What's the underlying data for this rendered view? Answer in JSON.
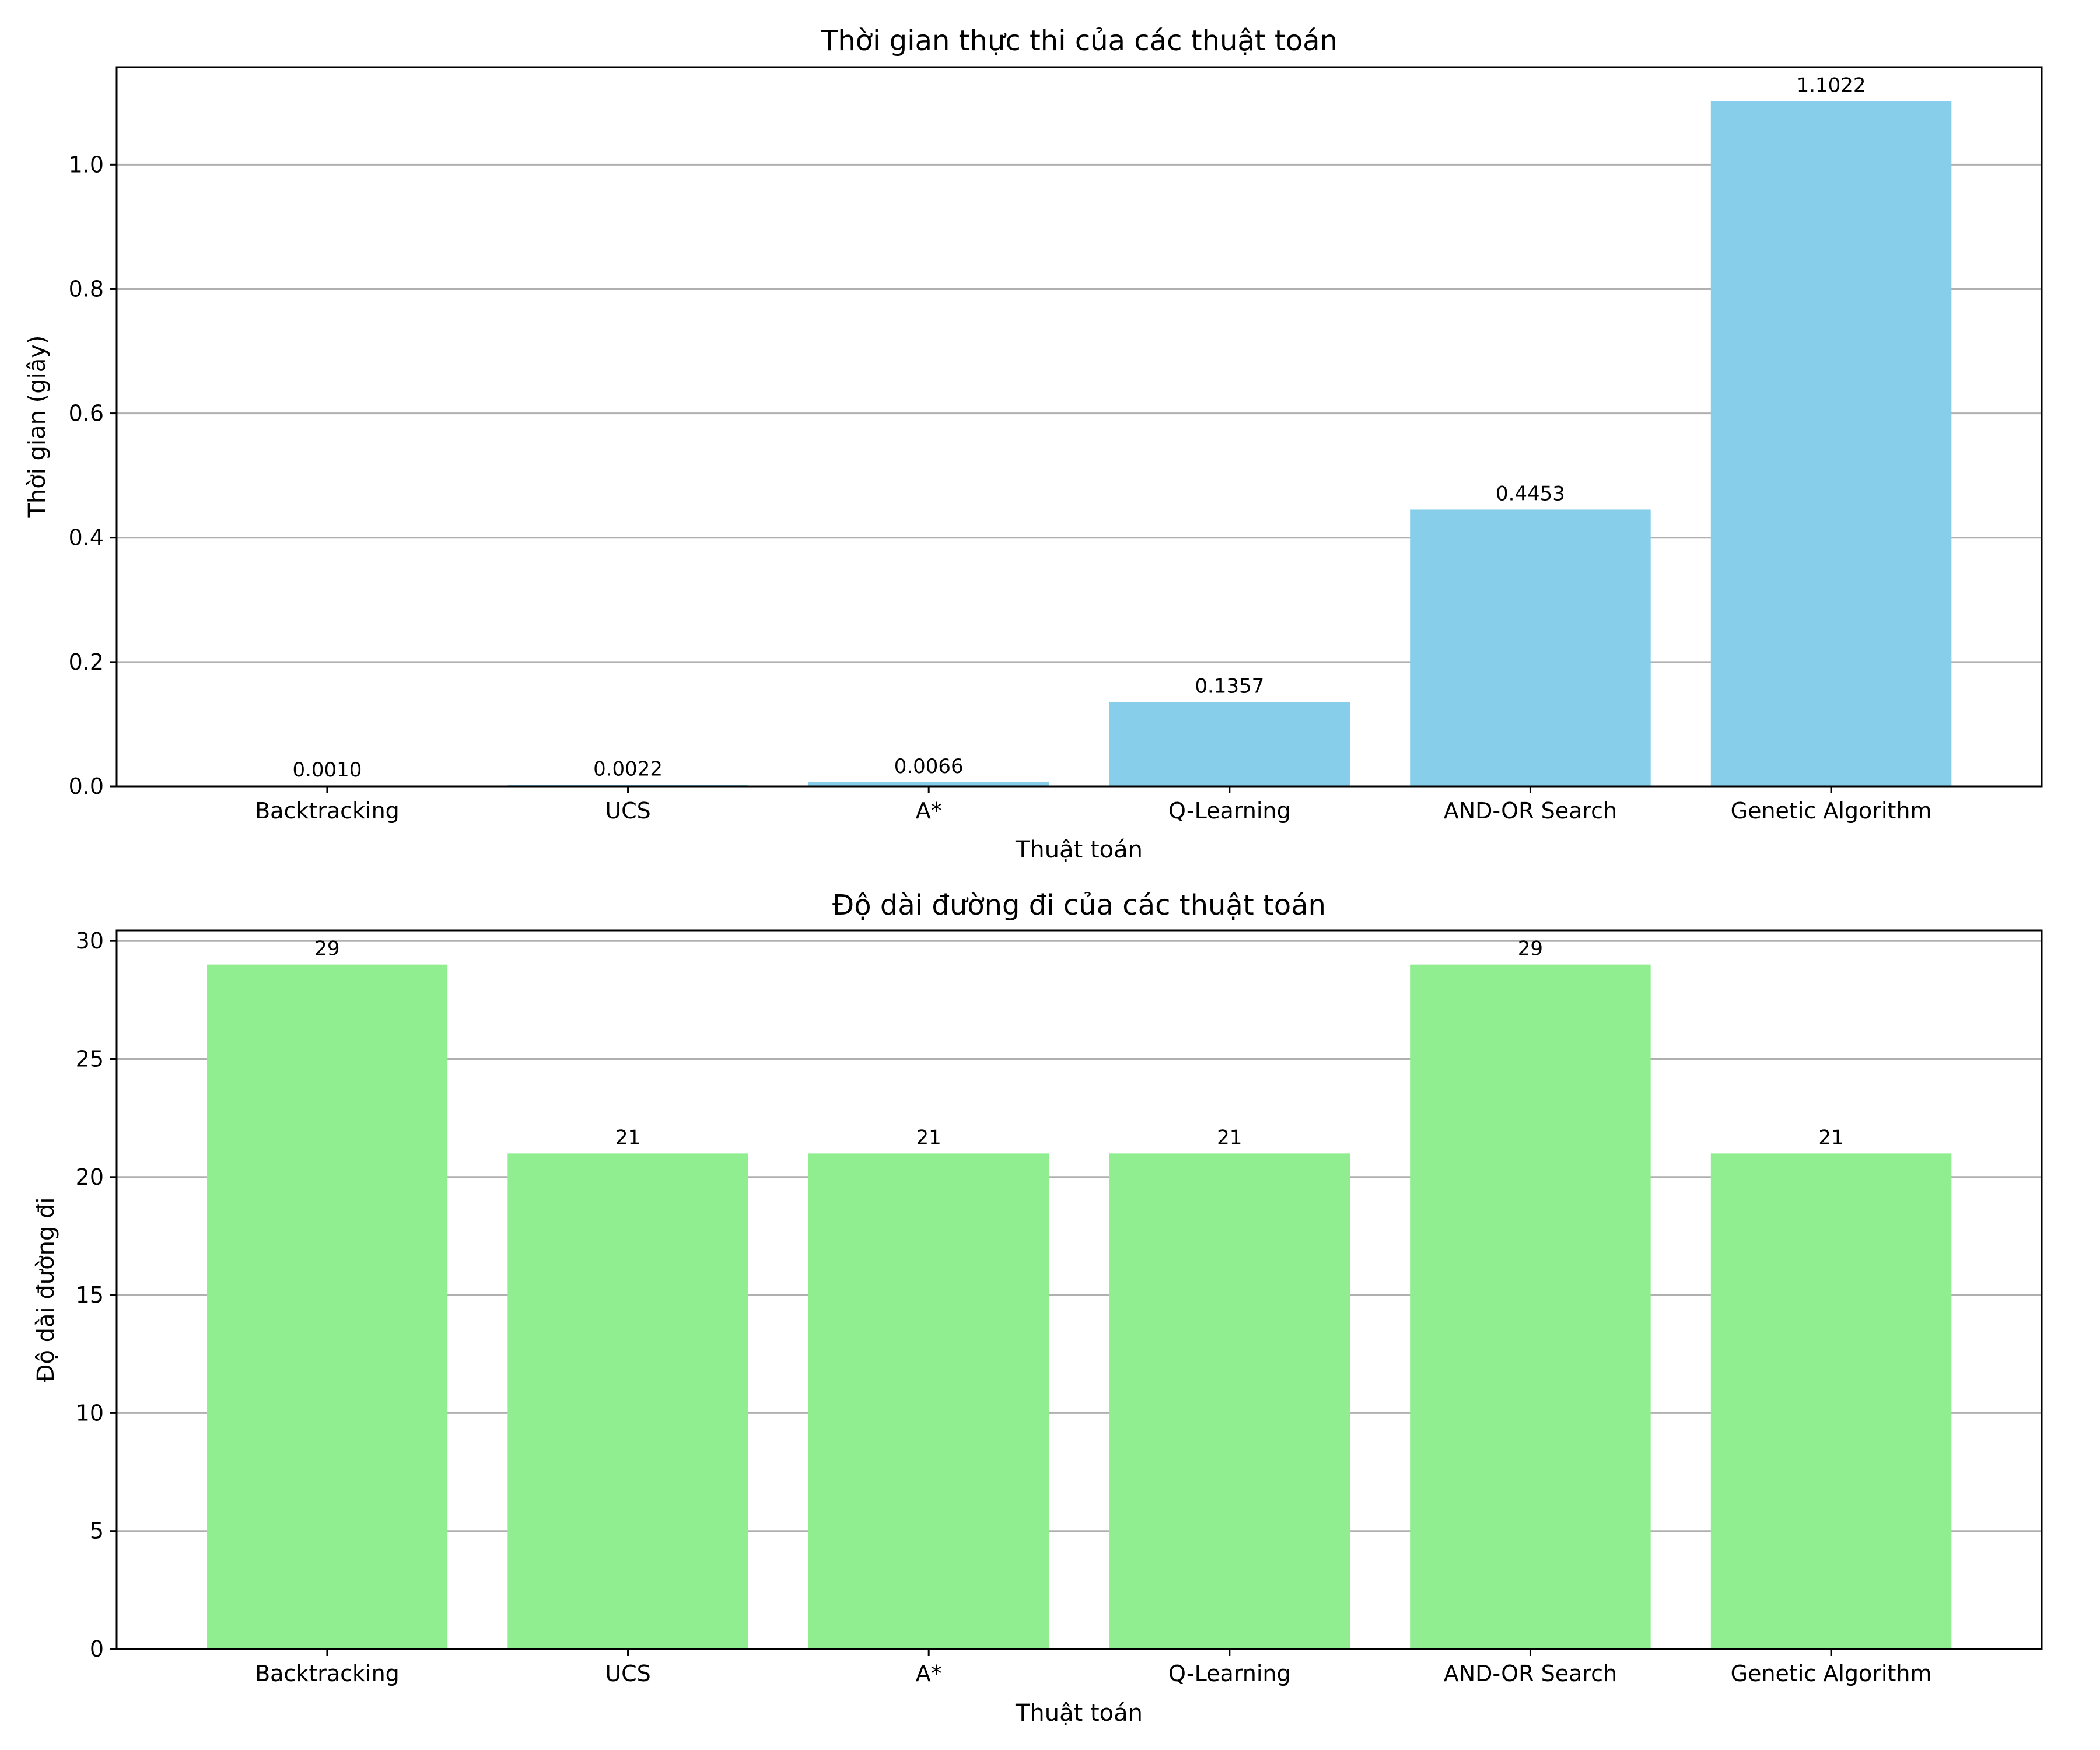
{
  "chart_data": [
    {
      "type": "bar",
      "title": "Thời gian thực thi của các thuật toán",
      "xlabel": "Thuật toán",
      "ylabel": "Thời gian (giây)",
      "categories": [
        "Backtracking",
        "UCS",
        "A*",
        "Q-Learning",
        "AND-OR Search",
        "Genetic Algorithm"
      ],
      "values": [
        0.001,
        0.0022,
        0.0066,
        0.1357,
        0.4453,
        1.1022
      ],
      "value_labels": [
        "0.0010",
        "0.0022",
        "0.0066",
        "0.1357",
        "0.4453",
        "1.1022"
      ],
      "ylim": [
        0,
        1.157
      ],
      "yticks": [
        0.0,
        0.2,
        0.4,
        0.6,
        0.8,
        1.0
      ],
      "ytick_labels": [
        "0.0",
        "0.2",
        "0.4",
        "0.6",
        "0.8",
        "1.0"
      ],
      "grid": "y",
      "bar_color": "#87ceeb"
    },
    {
      "type": "bar",
      "title": "Độ dài đường đi của các thuật toán",
      "xlabel": "Thuật toán",
      "ylabel": "Độ dài đường đi",
      "categories": [
        "Backtracking",
        "UCS",
        "A*",
        "Q-Learning",
        "AND-OR Search",
        "Genetic Algorithm"
      ],
      "values": [
        29,
        21,
        21,
        21,
        29,
        21
      ],
      "value_labels": [
        "29",
        "21",
        "21",
        "21",
        "29",
        "21"
      ],
      "ylim": [
        0,
        30.45
      ],
      "yticks": [
        0,
        5,
        10,
        15,
        20,
        25,
        30
      ],
      "ytick_labels": [
        "0",
        "5",
        "10",
        "15",
        "20",
        "25",
        "30"
      ],
      "grid": "y",
      "bar_color": "#90ee90"
    }
  ]
}
